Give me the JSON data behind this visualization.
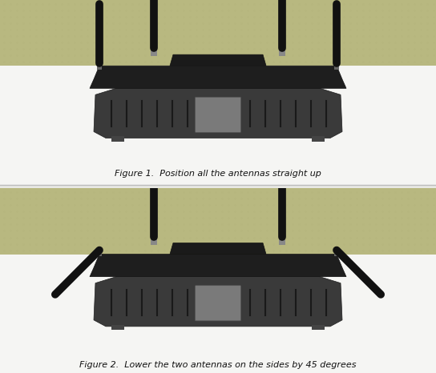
{
  "fig_width": 5.44,
  "fig_height": 4.66,
  "dpi": 100,
  "bg_color": "#e8e8e4",
  "panel1_caption": "Figure 1.  Position all the antennas straight up",
  "panel2_caption": "Figure 2.  Lower the two antennas on the sides by 45 degrees",
  "caption_fontsize": 8,
  "router_dark": "#1e1e1e",
  "router_mid": "#3a3a3a",
  "router_light": "#555555",
  "router_gray": "#666666",
  "antenna_color": "#111111",
  "wall_color_top": "#c8c89a",
  "wall_color": "#b8b880",
  "shelf_color": "#f0f0ee",
  "white_surface": "#f5f5f3",
  "panel_divider": "#aaaaaa"
}
